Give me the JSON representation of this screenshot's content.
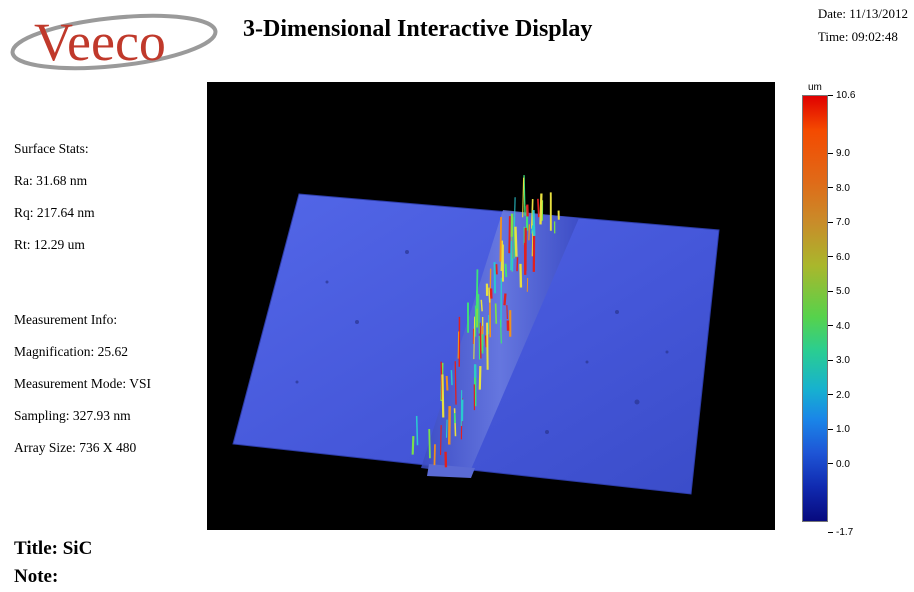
{
  "header": {
    "logo_text": "Veeco",
    "title": "3-Dimensional Interactive Display",
    "date": "Date: 11/13/2012",
    "time": "Time: 09:02:48"
  },
  "surface_stats": {
    "heading": "Surface Stats:",
    "ra": "Ra: 31.68 nm",
    "rq": "Rq: 217.64 nm",
    "rt": "Rt: 12.29 um"
  },
  "measurement_info": {
    "heading": "Measurement Info:",
    "magnification": "Magnification: 25.62",
    "mode": "Measurement Mode: VSI",
    "sampling": "Sampling: 327.93 nm",
    "array_size": "Array Size: 736 X 480"
  },
  "colorbar": {
    "unit": "um",
    "max_label": "10.6",
    "min_label": "-1.7",
    "ticks": [
      "9.0",
      "8.0",
      "7.0",
      "6.0",
      "5.0",
      "4.0",
      "3.0",
      "2.0",
      "1.0",
      "0.0"
    ],
    "colors": {
      "high": "#e00000",
      "mid": "#2acd92",
      "low": "#070a7e"
    }
  },
  "footer": {
    "title": "Title: SiC",
    "note": "Note:"
  },
  "colors": {
    "surface": "#4a5fe0",
    "background": "#000000"
  }
}
